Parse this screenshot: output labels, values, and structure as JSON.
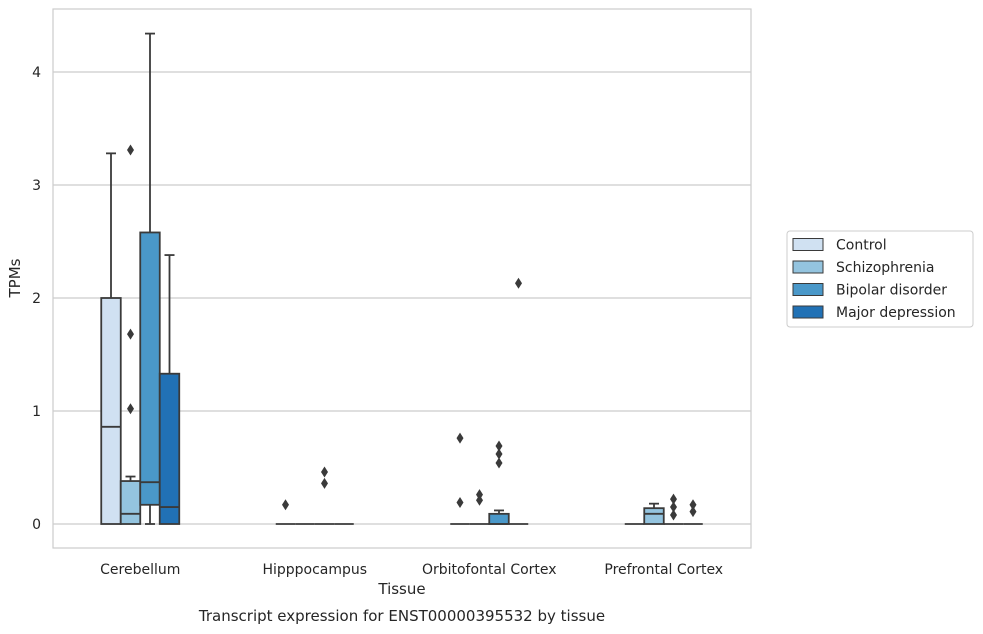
{
  "caption": "Transcript expression for ENST00000395532 by tissue",
  "chart_data": {
    "type": "box",
    "xlabel": "Tissue",
    "ylabel": "TPMs",
    "ylim": [
      -0.2,
      4.55
    ],
    "yticks": [
      0,
      1,
      2,
      3,
      4
    ],
    "grid": "horizontal",
    "legend_position": "right",
    "categories": [
      "Cerebellum",
      "Hipppocampus",
      "Orbitofontal Cortex",
      "Prefrontal Cortex"
    ],
    "series": [
      {
        "name": "Control",
        "color": "#d0e1f2",
        "boxes": [
          {
            "q1": 0,
            "median": 0.86,
            "q3": 2.0,
            "whisker_low": 0,
            "whisker_high": 3.28,
            "outliers": []
          },
          {
            "q1": 0,
            "median": 0,
            "q3": 0,
            "whisker_low": 0,
            "whisker_high": 0,
            "outliers": [
              0.17
            ]
          },
          {
            "q1": 0,
            "median": 0,
            "q3": 0,
            "whisker_low": 0,
            "whisker_high": 0,
            "outliers": [
              0.19,
              0.76
            ]
          },
          {
            "q1": 0,
            "median": 0,
            "q3": 0,
            "whisker_low": 0,
            "whisker_high": 0,
            "outliers": []
          }
        ]
      },
      {
        "name": "Schizophrenia",
        "color": "#94c4df",
        "boxes": [
          {
            "q1": 0,
            "median": 0.09,
            "q3": 0.38,
            "whisker_low": 0,
            "whisker_high": 0.42,
            "outliers": [
              1.02,
              1.68,
              3.31
            ]
          },
          {
            "q1": 0,
            "median": 0,
            "q3": 0,
            "whisker_low": 0,
            "whisker_high": 0,
            "outliers": []
          },
          {
            "q1": 0,
            "median": 0,
            "q3": 0,
            "whisker_low": 0,
            "whisker_high": 0,
            "outliers": [
              0.21,
              0.26
            ]
          },
          {
            "q1": 0,
            "median": 0.09,
            "q3": 0.14,
            "whisker_low": 0,
            "whisker_high": 0.18,
            "outliers": []
          }
        ]
      },
      {
        "name": "Bipolar disorder",
        "color": "#4a98c9",
        "boxes": [
          {
            "q1": 0.17,
            "median": 0.37,
            "q3": 2.58,
            "whisker_low": 0,
            "whisker_high": 4.34,
            "outliers": []
          },
          {
            "q1": 0,
            "median": 0,
            "q3": 0,
            "whisker_low": 0,
            "whisker_high": 0,
            "outliers": [
              0.36,
              0.46
            ]
          },
          {
            "q1": 0,
            "median": 0,
            "q3": 0.09,
            "whisker_low": 0,
            "whisker_high": 0.12,
            "outliers": [
              0.54,
              0.62,
              0.69
            ]
          },
          {
            "q1": 0,
            "median": 0,
            "q3": 0,
            "whisker_low": 0,
            "whisker_high": 0,
            "outliers": [
              0.08,
              0.15,
              0.22
            ]
          }
        ]
      },
      {
        "name": "Major depression",
        "color": "#2171b5",
        "boxes": [
          {
            "q1": 0,
            "median": 0.15,
            "q3": 1.33,
            "whisker_low": 0,
            "whisker_high": 2.38,
            "outliers": []
          },
          {
            "q1": 0,
            "median": 0,
            "q3": 0,
            "whisker_low": 0,
            "whisker_high": 0,
            "outliers": []
          },
          {
            "q1": 0,
            "median": 0,
            "q3": 0,
            "whisker_low": 0,
            "whisker_high": 0,
            "outliers": [
              2.13
            ]
          },
          {
            "q1": 0,
            "median": 0,
            "q3": 0,
            "whisker_low": 0,
            "whisker_high": 0,
            "outliers": [
              0.11,
              0.17
            ]
          }
        ]
      }
    ]
  }
}
